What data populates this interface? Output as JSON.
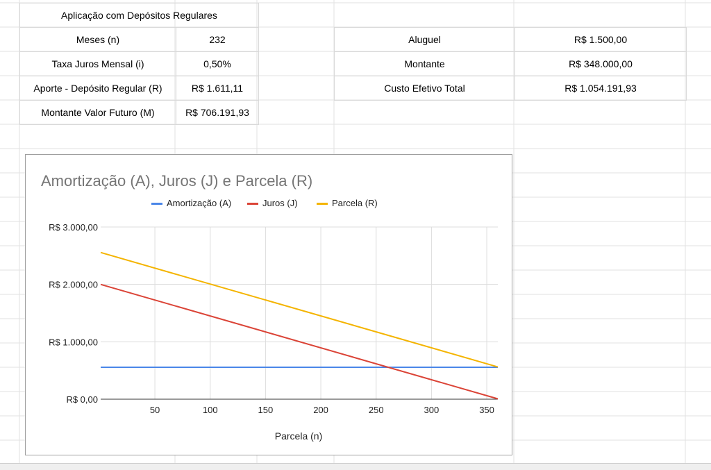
{
  "left_table": {
    "title": "Aplicação com Depósitos Regulares",
    "rows": [
      {
        "label": "Meses (n)",
        "value": "232"
      },
      {
        "label": "Taxa Juros Mensal (i)",
        "value": "0,50%"
      },
      {
        "label": "Aporte - Depósito Regular (R)",
        "value": "R$ 1.611,11"
      },
      {
        "label": "Montante Valor Futuro (M)",
        "value": "R$ 706.191,93"
      }
    ]
  },
  "right_table": {
    "rows": [
      {
        "label": "Aluguel",
        "value": "R$ 1.500,00"
      },
      {
        "label": "Montante",
        "value": "R$ 348.000,00"
      },
      {
        "label": "Custo Efetivo Total",
        "value": "R$ 1.054.191,93"
      }
    ]
  },
  "chart_data": {
    "type": "line",
    "title": "Amortização (A), Juros (J) e Parcela (R)",
    "xlabel": "Parcela (n)",
    "ylabel": "",
    "xlim": [
      1,
      360
    ],
    "ylim": [
      0,
      3000
    ],
    "x_ticks": [
      50,
      100,
      150,
      200,
      250,
      300,
      350
    ],
    "y_ticks": [
      0,
      1000,
      2000,
      3000
    ],
    "y_tick_labels": [
      "R$ 0,00",
      "R$ 1.000,00",
      "R$ 2.000,00",
      "R$ 3.000,00"
    ],
    "grid": true,
    "legend": "top",
    "series": [
      {
        "name": "Amortização (A)",
        "color": "#4a86e8",
        "x": [
          1,
          360
        ],
        "values": [
          556,
          556
        ]
      },
      {
        "name": "Juros (J)",
        "color": "#db4437",
        "x": [
          1,
          360
        ],
        "values": [
          2000,
          6
        ]
      },
      {
        "name": "Parcela (R)",
        "color": "#f4b400",
        "x": [
          1,
          360
        ],
        "values": [
          2556,
          562
        ]
      }
    ]
  }
}
